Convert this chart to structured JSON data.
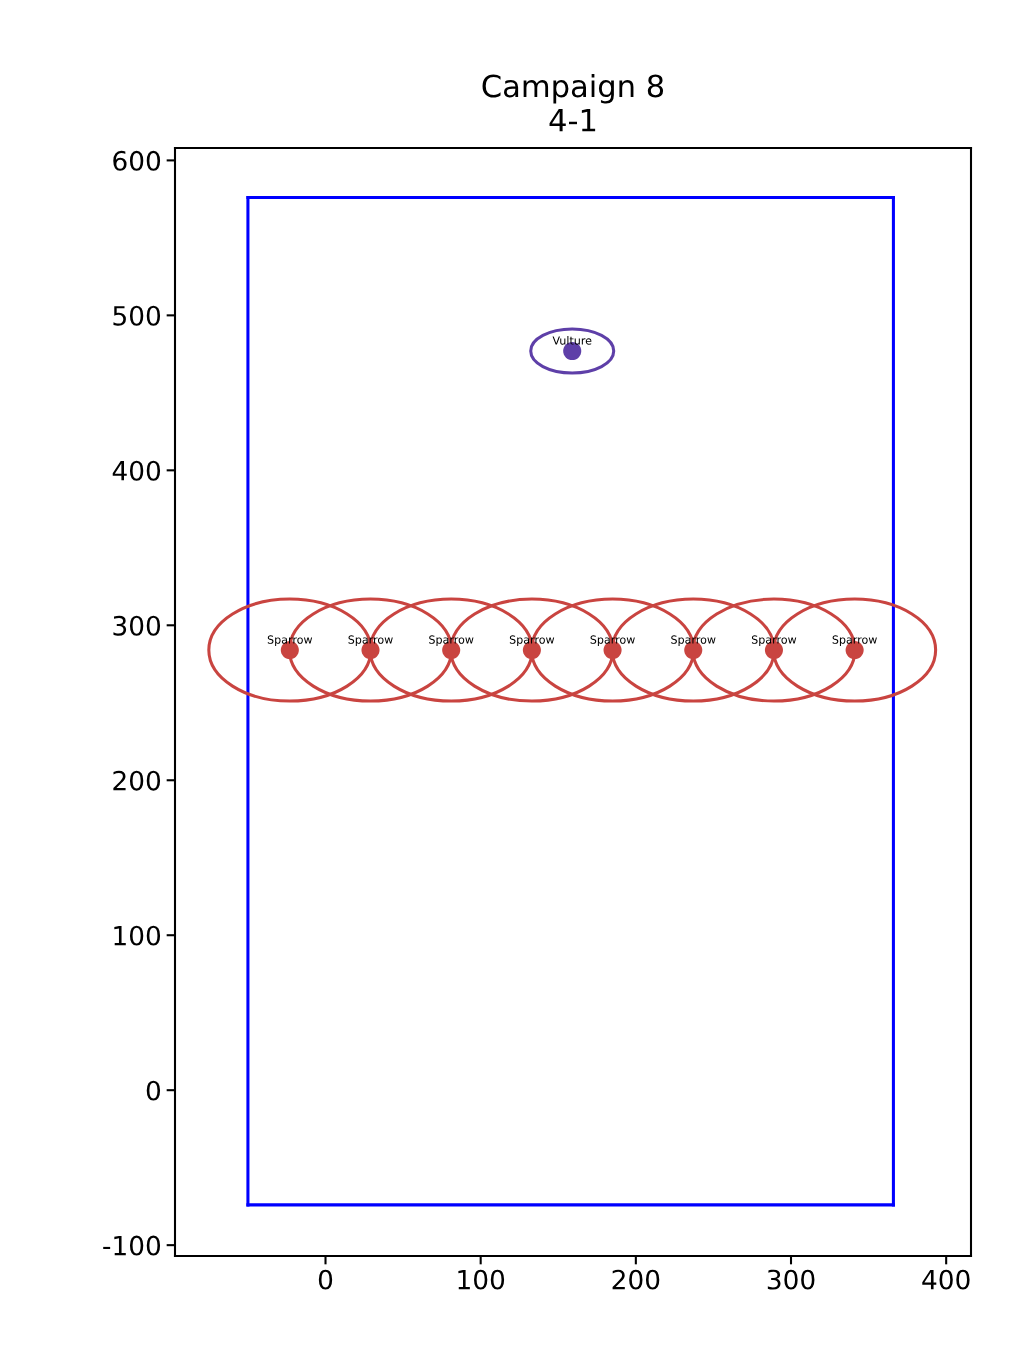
{
  "chart_data": {
    "type": "scatter",
    "title": "Campaign 8\n4-1",
    "xlim": [
      -97,
      416
    ],
    "ylim": [
      -107,
      608
    ],
    "xticks": [
      0,
      100,
      200,
      300,
      400
    ],
    "yticks": [
      -100,
      0,
      100,
      200,
      300,
      400,
      500,
      600
    ],
    "grid": false,
    "series": [
      {
        "type": "line",
        "marker": "none",
        "color": "#0000ff",
        "x": [
          -50,
          366
        ],
        "values": [
          576,
          576
        ]
      },
      {
        "type": "line",
        "marker": "none",
        "color": "#0000ff",
        "x": [
          -50,
          366
        ],
        "values": [
          -74,
          -74
        ]
      },
      {
        "type": "line",
        "marker": "none",
        "color": "#0000ff",
        "x": [
          -50,
          -50
        ],
        "values": [
          -74,
          576
        ]
      },
      {
        "type": "line",
        "marker": "none",
        "color": "#0000ff",
        "x": [
          366,
          366
        ],
        "values": [
          -74,
          576
        ]
      },
      {
        "marker": "circle",
        "color": "#c94440",
        "x": [
          -23,
          29,
          81,
          133,
          185,
          237,
          289,
          341
        ],
        "values": [
          284,
          284,
          284,
          284,
          284,
          284,
          284,
          284
        ]
      },
      {
        "marker": "circle",
        "color": "#5e3fa8",
        "x": [
          159
        ],
        "values": [
          477
        ]
      }
    ],
    "annotations": [
      {
        "text": "Sparrow",
        "x": -23,
        "y": 284
      },
      {
        "text": "Sparrow",
        "x": 29,
        "y": 284
      },
      {
        "text": "Sparrow",
        "x": 81,
        "y": 284
      },
      {
        "text": "Sparrow",
        "x": 133,
        "y": 284
      },
      {
        "text": "Sparrow",
        "x": 185,
        "y": 284
      },
      {
        "text": "Sparrow",
        "x": 237,
        "y": 284
      },
      {
        "text": "Sparrow",
        "x": 289,
        "y": 284
      },
      {
        "text": "Sparrow",
        "x": 341,
        "y": 284
      },
      {
        "text": "Vulture",
        "x": 159,
        "y": 477
      }
    ]
  }
}
